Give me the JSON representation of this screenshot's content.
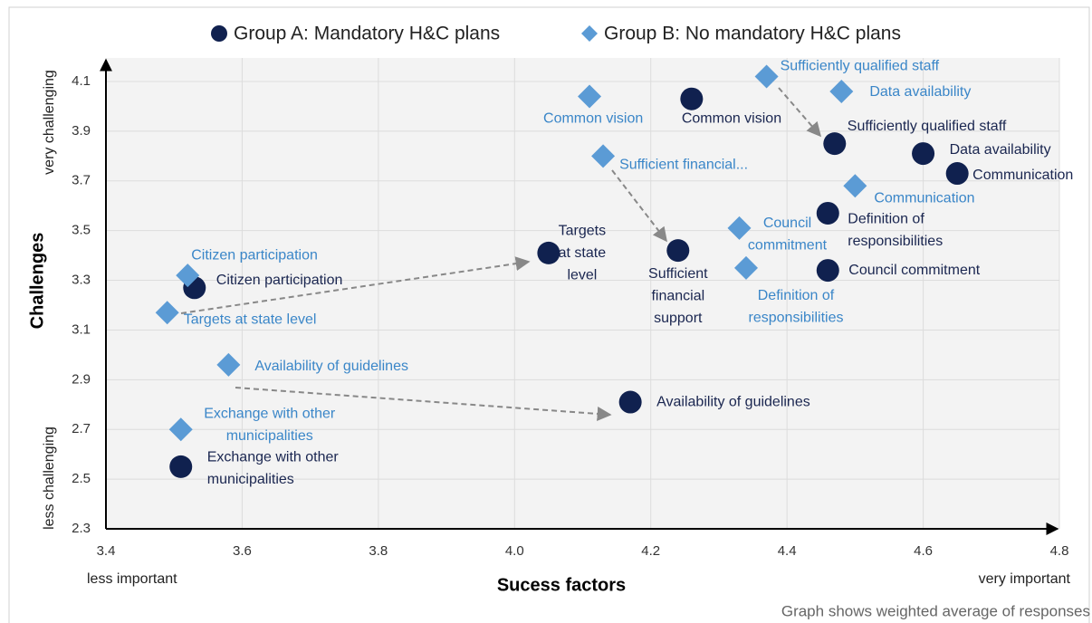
{
  "chart_data": {
    "type": "scatter",
    "xlabel": "Sucess factors",
    "ylabel": "Challenges",
    "x_low_label": "less important",
    "x_high_label": "very important",
    "y_low_label": "less challenging",
    "y_high_label": "very challenging",
    "note": "Graph shows weighted average of responses",
    "xlim": [
      3.4,
      4.8
    ],
    "xticks": [
      3.4,
      3.6,
      3.8,
      {
        "value": 4,
        "label": "4.0"
      },
      4.2,
      4.4,
      4.6,
      4.8
    ],
    "ylim": [
      2.3,
      4.1
    ],
    "yticks": [
      2.3,
      2.5,
      2.7,
      2.9,
      3.1,
      3.3,
      3.5,
      3.7,
      3.9,
      4.1
    ],
    "grid": true,
    "legend": "top",
    "series": [
      {
        "name": "Group A: Mandatory H&C plans",
        "color": "#10214f",
        "label_color": "#1a2650",
        "marker": "circle",
        "x": [
          4.26,
          4.47,
          4.6,
          4.65,
          4.46,
          4.46,
          4.24,
          4.05,
          3.53,
          4.17,
          3.51
        ],
        "values": [
          4.03,
          3.85,
          3.81,
          3.73,
          3.57,
          3.34,
          3.42,
          3.41,
          3.27,
          2.81,
          2.55
        ],
        "labels": [
          [
            "Common vision"
          ],
          [
            "Sufficiently qualified staff"
          ],
          [
            "Data availability"
          ],
          [
            "Communication"
          ],
          [
            "Definition of",
            "responsibilities"
          ],
          [
            "Council commitment"
          ],
          [
            "Sufficient",
            "financial",
            "support"
          ],
          [
            "Targets",
            "at state",
            "level"
          ],
          [
            "Citizen participation"
          ],
          [
            "Availability of guidelines"
          ],
          [
            "Exchange with other",
            "municipalities"
          ]
        ]
      },
      {
        "name": "Group B: No mandatory H&C plans",
        "color": "#5b9bd5",
        "label_color": "#3a86c8",
        "marker": "diamond",
        "x": [
          4.37,
          4.48,
          4.11,
          4.13,
          4.5,
          4.33,
          4.34,
          3.52,
          3.49,
          3.58,
          3.51
        ],
        "values": [
          4.12,
          4.06,
          4.04,
          3.8,
          3.68,
          3.51,
          3.35,
          3.32,
          3.17,
          2.96,
          2.7
        ],
        "labels": [
          [
            "Sufficiently qualified staff"
          ],
          [
            "Data availability"
          ],
          [
            "Common vision"
          ],
          [
            "Sufficient financial..."
          ],
          [
            "Communication"
          ],
          [
            "Council",
            "commitment"
          ],
          [
            "Definition of",
            "responsibilities"
          ],
          [
            "Citizen participation"
          ],
          [
            "Targets at state level"
          ],
          [
            "Availability of guidelines"
          ],
          [
            "Exchange with other",
            "municipalities"
          ]
        ]
      }
    ]
  }
}
